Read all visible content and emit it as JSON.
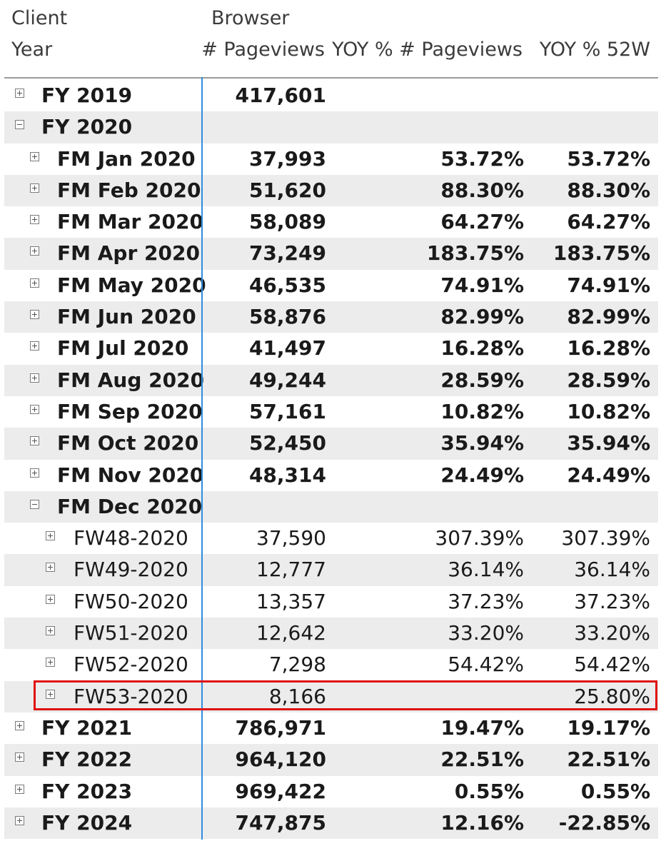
{
  "header": {
    "row_field": "Client",
    "row_subfield": "Year",
    "column_group": "Browser",
    "columns": [
      "# Pageviews",
      "YOY % # Pageviews",
      "YOY % 52W"
    ]
  },
  "rows": [
    {
      "label": "FY 2019",
      "level": 0,
      "toggle": "plus",
      "bold": true,
      "values": [
        "417,601",
        "",
        ""
      ]
    },
    {
      "label": "FY 2020",
      "level": 0,
      "toggle": "minus",
      "bold": true,
      "values": [
        "",
        "",
        ""
      ]
    },
    {
      "label": "FM Jan 2020",
      "level": 1,
      "toggle": "plus",
      "bold": true,
      "values": [
        "37,993",
        "53.72%",
        "53.72%"
      ]
    },
    {
      "label": "FM Feb 2020",
      "level": 1,
      "toggle": "plus",
      "bold": true,
      "values": [
        "51,620",
        "88.30%",
        "88.30%"
      ]
    },
    {
      "label": "FM Mar 2020",
      "level": 1,
      "toggle": "plus",
      "bold": true,
      "values": [
        "58,089",
        "64.27%",
        "64.27%"
      ]
    },
    {
      "label": "FM Apr 2020",
      "level": 1,
      "toggle": "plus",
      "bold": true,
      "values": [
        "73,249",
        "183.75%",
        "183.75%"
      ]
    },
    {
      "label": "FM May 2020",
      "level": 1,
      "toggle": "plus",
      "bold": true,
      "values": [
        "46,535",
        "74.91%",
        "74.91%"
      ]
    },
    {
      "label": "FM Jun 2020",
      "level": 1,
      "toggle": "plus",
      "bold": true,
      "values": [
        "58,876",
        "82.99%",
        "82.99%"
      ]
    },
    {
      "label": "FM Jul 2020",
      "level": 1,
      "toggle": "plus",
      "bold": true,
      "values": [
        "41,497",
        "16.28%",
        "16.28%"
      ]
    },
    {
      "label": "FM Aug 2020",
      "level": 1,
      "toggle": "plus",
      "bold": true,
      "values": [
        "49,244",
        "28.59%",
        "28.59%"
      ]
    },
    {
      "label": "FM Sep 2020",
      "level": 1,
      "toggle": "plus",
      "bold": true,
      "values": [
        "57,161",
        "10.82%",
        "10.82%"
      ]
    },
    {
      "label": "FM Oct 2020",
      "level": 1,
      "toggle": "plus",
      "bold": true,
      "values": [
        "52,450",
        "35.94%",
        "35.94%"
      ]
    },
    {
      "label": "FM Nov 2020",
      "level": 1,
      "toggle": "plus",
      "bold": true,
      "values": [
        "48,314",
        "24.49%",
        "24.49%"
      ]
    },
    {
      "label": "FM Dec 2020",
      "level": 1,
      "toggle": "minus",
      "bold": true,
      "values": [
        "",
        "",
        ""
      ]
    },
    {
      "label": "FW48-2020",
      "level": 2,
      "toggle": "plus",
      "bold": false,
      "values": [
        "37,590",
        "307.39%",
        "307.39%"
      ]
    },
    {
      "label": "FW49-2020",
      "level": 2,
      "toggle": "plus",
      "bold": false,
      "values": [
        "12,777",
        "36.14%",
        "36.14%"
      ]
    },
    {
      "label": "FW50-2020",
      "level": 2,
      "toggle": "plus",
      "bold": false,
      "values": [
        "13,357",
        "37.23%",
        "37.23%"
      ]
    },
    {
      "label": "FW51-2020",
      "level": 2,
      "toggle": "plus",
      "bold": false,
      "values": [
        "12,642",
        "33.20%",
        "33.20%"
      ]
    },
    {
      "label": "FW52-2020",
      "level": 2,
      "toggle": "plus",
      "bold": false,
      "values": [
        "7,298",
        "54.42%",
        "54.42%"
      ]
    },
    {
      "label": "FW53-2020",
      "level": 2,
      "toggle": "plus",
      "bold": false,
      "values": [
        "8,166",
        "",
        "25.80%"
      ],
      "highlighted": true
    },
    {
      "label": "FY 2021",
      "level": 0,
      "toggle": "plus",
      "bold": true,
      "values": [
        "786,971",
        "19.47%",
        "19.17%"
      ]
    },
    {
      "label": "FY 2022",
      "level": 0,
      "toggle": "plus",
      "bold": true,
      "values": [
        "964,120",
        "22.51%",
        "22.51%"
      ]
    },
    {
      "label": "FY 2023",
      "level": 0,
      "toggle": "plus",
      "bold": true,
      "values": [
        "969,422",
        "0.55%",
        "0.55%"
      ]
    },
    {
      "label": "FY 2024",
      "level": 0,
      "toggle": "plus",
      "bold": true,
      "values": [
        "747,875",
        "12.16%",
        "-22.85%"
      ]
    }
  ],
  "colors": {
    "highlight_border": "#e01010",
    "divider": "#2e8ce0",
    "band": "#ececec"
  }
}
